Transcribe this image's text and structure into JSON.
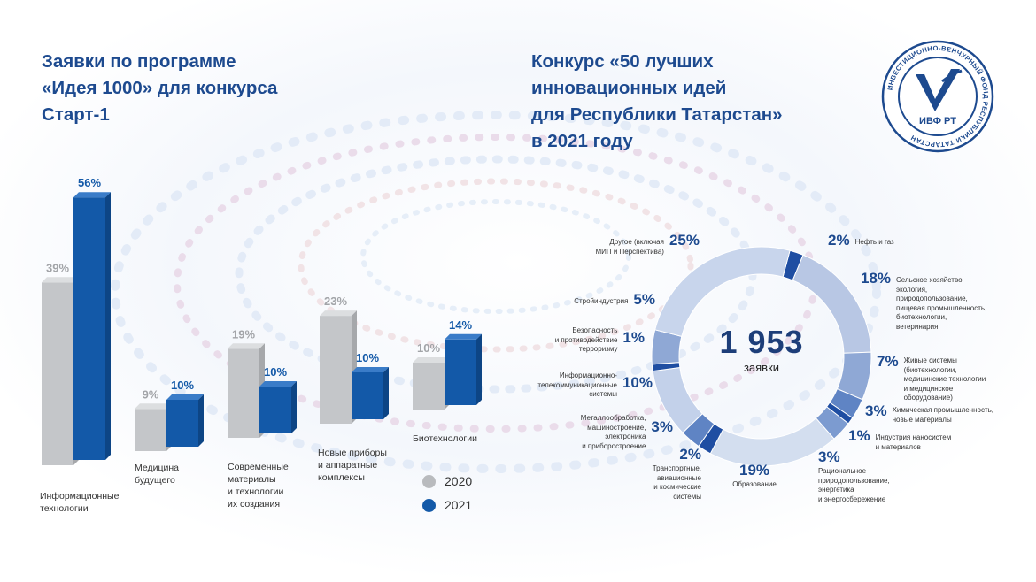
{
  "left": {
    "title_lines": [
      "Заявки по программе",
      "«Идея 1000»  для конкурса",
      "Старт-1"
    ],
    "legend": [
      {
        "label": "2020",
        "color": "#b9bbbe"
      },
      {
        "label": "2021",
        "color": "#1359a8"
      }
    ]
  },
  "right": {
    "title_lines": [
      "Конкурс «50 лучших",
      "инновационных идей",
      "для Республики Татарстан»",
      "в 2021 году"
    ],
    "center_value": "1 953",
    "center_label": "заявки",
    "logo": {
      "text": "ИВФ РТ",
      "ring_text": "ИНВЕСТИЦИОННО-ВЕНЧУРНЫЙ ФОНД РЕСПУБЛИКИ ТАТАРСТАН"
    }
  },
  "chart_data": [
    {
      "type": "bar",
      "title": "Заявки по программе «Идея 1000»  для конкурса Старт-1",
      "categories": [
        "Информационные\nтехнологии",
        "Медицина\nбудущего",
        "Современные\nматериалы\nи технологии\nих создания",
        "Новые приборы\nи аппаратные\nкомплексы",
        "Биотехнологии"
      ],
      "series": [
        {
          "name": "2020",
          "values": [
            39,
            9,
            19,
            23,
            10
          ],
          "labels": [
            "39%",
            "9%",
            "19%",
            "23%",
            "10%"
          ]
        },
        {
          "name": "2021",
          "values": [
            56,
            10,
            10,
            10,
            14
          ],
          "labels": [
            "56%",
            "10%",
            "10%",
            "10%",
            "14%"
          ]
        }
      ],
      "unit": "%"
    },
    {
      "type": "pie",
      "title": "Конкурс «50 лучших инновационных идей для Республики Татарстан» в 2021 году",
      "total": "1 953",
      "slices": [
        {
          "label": "Нефть и газ",
          "value": 2,
          "pct": "2%",
          "color": "#1f4ea2"
        },
        {
          "label": "Сельское хозяйство,\nэкология,\nприродопользование,\nпищевая промышленность,\nбиотехнологии,\nветеринария",
          "value": 18,
          "pct": "18%",
          "color": "#b8c7e4"
        },
        {
          "label": "Живые системы\n(биотехнологии,\nмедицинские технологии\nи медицинское\nоборудование)",
          "value": 7,
          "pct": "7%",
          "color": "#8fa8d5"
        },
        {
          "label": "Химическая промышленность,\nновые материалы",
          "value": 3,
          "pct": "3%",
          "color": "#5f84c4"
        },
        {
          "label": "Индустрия наносистем\nи материалов",
          "value": 1,
          "pct": "1%",
          "color": "#1f4ea2"
        },
        {
          "label": "Рациональное\nприродопользование,\nэнергетика\nи энергосбережение",
          "value": 3,
          "pct": "3%",
          "color": "#7c9bd0"
        },
        {
          "label": "Образование",
          "value": 19,
          "pct": "19%",
          "color": "#d3deef"
        },
        {
          "label": "Транспортные,\nавиационные\nи космические\nсистемы",
          "value": 2,
          "pct": "2%",
          "color": "#1f4ea2"
        },
        {
          "label": "Металлообработка,\nмашиностроение,\nэлектроника\nи приборостроение",
          "value": 3,
          "pct": "3%",
          "color": "#5f84c4"
        },
        {
          "label": "Информационно-\nтелекоммуникационные\nсистемы",
          "value": 10,
          "pct": "10%",
          "color": "#c3d1ea"
        },
        {
          "label": "Безопасность\nи противодействие\nтерроризму",
          "value": 1,
          "pct": "1%",
          "color": "#1f4ea2"
        },
        {
          "label": "Стройиндустрия",
          "value": 5,
          "pct": "5%",
          "color": "#8fa8d5"
        },
        {
          "label": "Другое (включая\nМИП и Перспектива)",
          "value": 25,
          "pct": "25%",
          "color": "#c8d5ec"
        }
      ]
    }
  ]
}
